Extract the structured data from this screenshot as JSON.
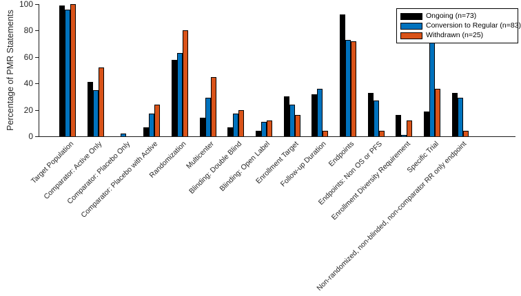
{
  "figure": {
    "background": "#ffffff",
    "axis_color": "#262626"
  },
  "chart_data": {
    "type": "bar",
    "title": "",
    "xlabel": "",
    "ylabel": "Percentage of PMR Statements",
    "ylim": [
      0,
      100
    ],
    "yticks": [
      0,
      20,
      40,
      60,
      80,
      100
    ],
    "grid": false,
    "legend_position": "top-right",
    "bar_layout": "grouped",
    "categories": [
      "Target Population",
      "Comparator: Active Only",
      "Comparator: Placebo Only",
      "Comparator: Placebo with Active",
      "Randomization",
      "Multicenter",
      "Blinding: Double Blind",
      "Blinding: Open Label",
      "Enrollment Target",
      "Follow-up Duration",
      "Endpoints",
      "Endpoints: Non OS or PFS",
      "Enrollment Diversity Requirement",
      "Specific Trial",
      "Non-randomized, non-blinded, non-comparator RR only endpoint"
    ],
    "series": [
      {
        "name": "Ongoing (n=73)",
        "color": "#000000",
        "values": [
          99,
          41,
          0,
          7,
          58,
          14,
          7,
          4,
          30,
          32,
          92,
          33,
          16,
          19,
          33
        ]
      },
      {
        "name": "Conversion to Regular (n=83)",
        "color": "#0072BD",
        "values": [
          96,
          35,
          2,
          17,
          63,
          29,
          17,
          11,
          24,
          36,
          73,
          27,
          1,
          71,
          29
        ]
      },
      {
        "name": "Withdrawn (n=25)",
        "color": "#D95319",
        "values": [
          100,
          52,
          0,
          24,
          80,
          45,
          20,
          12,
          16,
          4,
          72,
          4,
          12,
          36,
          4
        ]
      }
    ]
  }
}
